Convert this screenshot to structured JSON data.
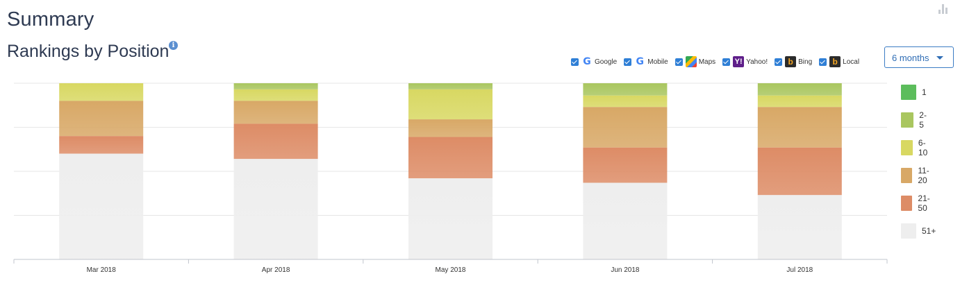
{
  "header": {
    "title": "Summary",
    "subtitle": "Rankings by Position",
    "info_icon": "info-icon"
  },
  "engines": [
    {
      "label": "Google",
      "icon": "google-icon",
      "checked": true
    },
    {
      "label": "Mobile",
      "icon": "google-icon",
      "checked": true
    },
    {
      "label": "Maps",
      "icon": "maps-icon",
      "checked": true
    },
    {
      "label": "Yahoo!",
      "icon": "yahoo-icon",
      "checked": true
    },
    {
      "label": "Bing",
      "icon": "bing-icon",
      "checked": true
    },
    {
      "label": "Local",
      "icon": "bing-icon",
      "checked": true
    }
  ],
  "period": {
    "value": "6 months"
  },
  "legend": [
    {
      "label": "1",
      "color": "#5cbd5c"
    },
    {
      "label": "2-5",
      "color": "#a9c65f"
    },
    {
      "label": "6-10",
      "color": "#d8d862"
    },
    {
      "label": "11-20",
      "color": "#d8a866"
    },
    {
      "label": "21-50",
      "color": "#dd8c66"
    },
    {
      "label": "51+",
      "color": "#eeeeee"
    }
  ],
  "chart_data": {
    "type": "bar",
    "stacked": true,
    "normalized": true,
    "categories": [
      "Mar 2018",
      "Apr 2018",
      "May 2018",
      "Jun 2018",
      "Jul 2018"
    ],
    "series": [
      {
        "name": "1",
        "values": [
          0,
          0,
          0,
          0,
          0
        ]
      },
      {
        "name": "2-5",
        "values": [
          0,
          3.5,
          3.5,
          7,
          7
        ]
      },
      {
        "name": "6-10",
        "values": [
          10,
          6.5,
          17,
          6.5,
          6.5
        ]
      },
      {
        "name": "11-20",
        "values": [
          20,
          13,
          10,
          23,
          23
        ]
      },
      {
        "name": "21-50",
        "values": [
          10,
          20,
          23.5,
          20,
          27
        ]
      },
      {
        "name": "51+",
        "values": [
          60,
          57,
          46,
          43.5,
          36.5
        ]
      }
    ],
    "ylim": [
      0,
      100
    ],
    "grid": true,
    "legend_position": "right"
  }
}
